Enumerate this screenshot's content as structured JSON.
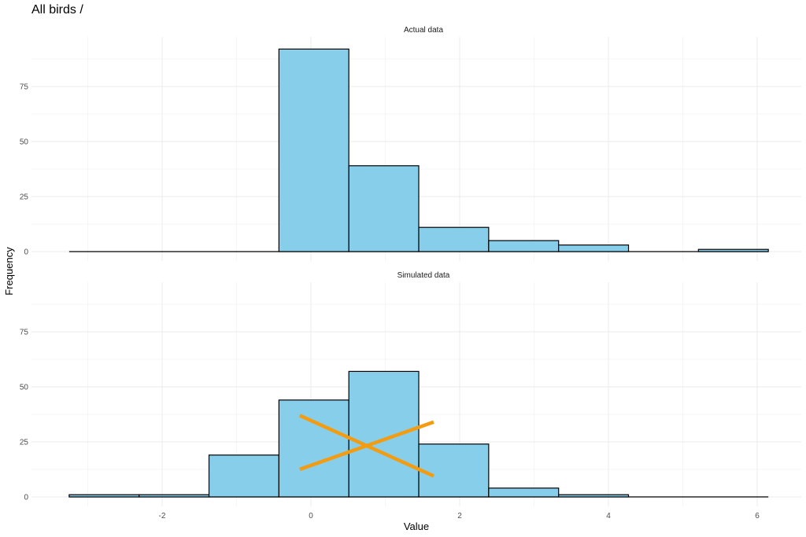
{
  "title": "All birds /",
  "chart_data": {
    "type": "bar",
    "subtype": "faceted-histogram",
    "xlabel": "Value",
    "ylabel": "Frequency",
    "xlim": [
      -3.3,
      6.1
    ],
    "ylim": [
      0,
      95
    ],
    "x_ticks": [
      -2,
      0,
      2,
      4,
      6
    ],
    "y_ticks": [
      0,
      25,
      50,
      75
    ],
    "bin_edges": [
      -3.25,
      -2.31,
      -1.37,
      -0.43,
      0.51,
      1.45,
      2.39,
      3.33,
      4.27,
      5.21,
      6.15
    ],
    "panels": [
      {
        "label": "Actual data",
        "counts": [
          0,
          0,
          0,
          92,
          39,
          11,
          5,
          3,
          0,
          1
        ]
      },
      {
        "label": "Simulated data",
        "counts": [
          1,
          1,
          19,
          44,
          57,
          24,
          4,
          1,
          0,
          0
        ],
        "overlay": {
          "color": "#f39c12",
          "lines": [
            [
              [
                -0.15,
                37
              ],
              [
                1.65,
                9.5
              ]
            ],
            [
              [
                -0.15,
                12.5
              ],
              [
                1.65,
                34
              ]
            ]
          ]
        }
      }
    ],
    "colors": {
      "bar_fill": "#87ceeb",
      "bar_stroke": "#000000",
      "grid": "#ebebeb"
    },
    "grid": true
  }
}
